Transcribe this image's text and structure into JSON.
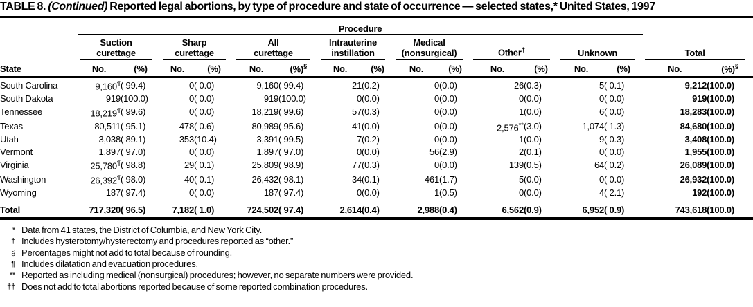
{
  "title": {
    "table_label": "TABLE 8. ",
    "continued": "(Continued) ",
    "text": "Reported legal abortions, by type of procedure and state of occurrence — selected states,* United States, 1997"
  },
  "table": {
    "procedure_label": "Procedure",
    "state_header": "State",
    "groups": [
      {
        "label": "Suction\ncurettage",
        "no": "No.",
        "pct": "(%)"
      },
      {
        "label": "Sharp\ncurettage",
        "no": "No.",
        "pct": "(%)"
      },
      {
        "label": "All\ncurettage",
        "no": "No.",
        "pct": "(%)",
        "pct_sup": "§"
      },
      {
        "label": "Intrauterine\ninstillation",
        "no": "No.",
        "pct": "(%)"
      },
      {
        "label": "Medical\n(nonsurgical)",
        "no": "No.",
        "pct": "(%)"
      },
      {
        "label": "Other",
        "sup": "†",
        "no": "No.",
        "pct": "(%)"
      },
      {
        "label": "Unknown",
        "no": "No.",
        "pct": "(%)"
      },
      {
        "label": "Total",
        "no": "No.",
        "pct": "(%)",
        "pct_sup": "§"
      }
    ],
    "rows": [
      {
        "state": "South Carolina",
        "cells": [
          "9,160¶",
          "( 99.4)",
          "0",
          "( 0.0)",
          "9,160",
          "( 99.4)",
          "21",
          "(0.2)",
          "0",
          "(0.0)",
          "26",
          "(0.3)",
          "5",
          "( 0.1)",
          "9,212",
          "(100.0)"
        ]
      },
      {
        "state": "South Dakota",
        "cells": [
          "919",
          "(100.0)",
          "0",
          "( 0.0)",
          "919",
          "(100.0)",
          "0",
          "(0.0)",
          "0",
          "(0.0)",
          "0",
          "(0.0)",
          "0",
          "( 0.0)",
          "919",
          "(100.0)"
        ]
      },
      {
        "state": "Tennessee",
        "cells": [
          "18,219¶",
          "( 99.6)",
          "0",
          "( 0.0)",
          "18,219",
          "( 99.6)",
          "57",
          "(0.3)",
          "0",
          "(0.0)",
          "1",
          "(0.0)",
          "6",
          "( 0.0)",
          "18,283",
          "(100.0)"
        ]
      },
      {
        "state": "Texas",
        "cells": [
          "80,511",
          "( 95.1)",
          "478",
          "( 0.6)",
          "80,989",
          "( 95.6)",
          "41",
          "(0.0)",
          "0",
          "(0.0)",
          "2,576**",
          "(3.0)",
          "1,074",
          "( 1.3)",
          "84,680",
          "(100.0)"
        ]
      },
      {
        "state": "Utah",
        "cells": [
          "3,038",
          "( 89.1)",
          "353",
          "(10.4)",
          "3,391",
          "( 99.5)",
          "7",
          "(0.2)",
          "0",
          "(0.0)",
          "1",
          "(0.0)",
          "9",
          "( 0.3)",
          "3,408",
          "(100.0)"
        ]
      },
      {
        "state": "Vermont",
        "cells": [
          "1,897",
          "( 97.0)",
          "0",
          "( 0.0)",
          "1,897",
          "( 97.0)",
          "0",
          "(0.0)",
          "56",
          "(2.9)",
          "2",
          "(0.1)",
          "0",
          "( 0.0)",
          "1,955",
          "(100.0)"
        ]
      },
      {
        "state": "Virginia",
        "cells": [
          "25,780¶",
          "( 98.8)",
          "29",
          "( 0.1)",
          "25,809",
          "( 98.9)",
          "77",
          "(0.3)",
          "0",
          "(0.0)",
          "139",
          "(0.5)",
          "64",
          "( 0.2)",
          "26,089",
          "(100.0)"
        ]
      },
      {
        "state": "Washington",
        "cells": [
          "26,392¶",
          "( 98.0)",
          "40",
          "( 0.1)",
          "26,432",
          "( 98.1)",
          "34",
          "(0.1)",
          "461",
          "(1.7)",
          "5",
          "(0.0)",
          "0",
          "( 0.0)",
          "26,932",
          "(100.0)"
        ]
      },
      {
        "state": "Wyoming",
        "cells": [
          "187",
          "( 97.4)",
          "0",
          "( 0.0)",
          "187",
          "( 97.4)",
          "0",
          "(0.0)",
          "1",
          "(0.5)",
          "0",
          "(0.0)",
          "4",
          "( 2.1)",
          "192",
          "(100.0)"
        ]
      },
      {
        "state": "Total",
        "is_total": true,
        "cells": [
          "717,320",
          "( 96.5)",
          "7,182",
          "( 1.0)",
          "724,502",
          "( 97.4)",
          "2,614",
          "(0.4)",
          "2,988",
          "(0.4)",
          "6,562",
          "(0.9)",
          "6,952",
          "( 0.9)",
          "743,618",
          "(100.0)"
        ]
      }
    ]
  },
  "footnotes": [
    {
      "marker": "*",
      "text": "Data from 41 states, the District of Columbia, and New York City."
    },
    {
      "marker": "†",
      "text": "Includes hysterotomy/hysterectomy and procedures reported as “other.”"
    },
    {
      "marker": "§",
      "text": "Percentages might not add to total because of rounding."
    },
    {
      "marker": "¶",
      "text": "Includes dilatation and evacuation procedures."
    },
    {
      "marker": "**",
      "text": "Reported as including medical (nonsurgical) procedures; however, no separate numbers were provided."
    },
    {
      "marker": "††",
      "text": "Does not add to total abortions reported because of some reported combination procedures."
    }
  ]
}
